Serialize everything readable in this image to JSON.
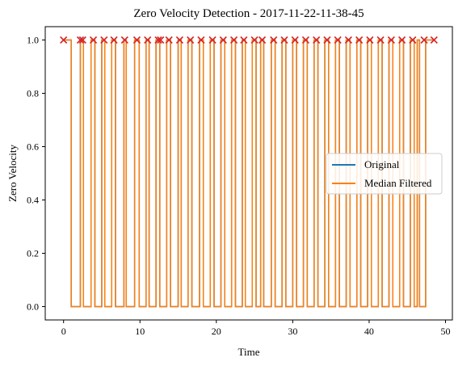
{
  "chart_data": {
    "type": "line",
    "title": "Zero Velocity Detection - 2017-11-22-11-38-45",
    "xlabel": "Time",
    "ylabel": "Zero Velocity",
    "xlim": [
      -2.4,
      50.9
    ],
    "ylim": [
      -0.05,
      1.05
    ],
    "xticks": [
      0,
      10,
      20,
      30,
      40,
      50
    ],
    "yticks": [
      0.0,
      0.2,
      0.4,
      0.6,
      0.8,
      1.0
    ],
    "grid": false,
    "legend": "center-right",
    "t_end": 48.5,
    "series": [
      {
        "name": "Original",
        "color": "#1f77b4",
        "note_zero_intervals": "same as filtered plus brief spike",
        "zero_intervals": [
          [
            1.0,
            2.2
          ],
          [
            2.6,
            3.6
          ],
          [
            4.1,
            5.0
          ],
          [
            5.4,
            6.3
          ],
          [
            6.8,
            7.9
          ],
          [
            8.2,
            9.3
          ],
          [
            9.9,
            10.8
          ],
          [
            11.2,
            12.1
          ],
          [
            12.6,
            13.5
          ],
          [
            14.0,
            15.0
          ],
          [
            15.4,
            16.3
          ],
          [
            16.8,
            17.8
          ],
          [
            18.3,
            19.2
          ],
          [
            19.7,
            20.6
          ],
          [
            21.1,
            22.0
          ],
          [
            22.5,
            23.4
          ],
          [
            23.8,
            24.7
          ],
          [
            25.2,
            25.8
          ],
          [
            26.2,
            27.2
          ],
          [
            27.7,
            28.6
          ],
          [
            29.1,
            30.0
          ],
          [
            30.5,
            31.4
          ],
          [
            31.9,
            32.8
          ],
          [
            33.3,
            34.2
          ],
          [
            34.7,
            35.6
          ],
          [
            36.1,
            37.0
          ],
          [
            37.5,
            38.4
          ],
          [
            38.9,
            39.8
          ],
          [
            40.3,
            41.2
          ],
          [
            41.7,
            42.6
          ],
          [
            43.1,
            44.0
          ],
          [
            44.5,
            45.4
          ],
          [
            45.9,
            46.3
          ],
          [
            46.6,
            47.4
          ]
        ]
      },
      {
        "name": "Median Filtered",
        "color": "#ff7f0e",
        "zero_intervals": [
          [
            1.0,
            2.2
          ],
          [
            2.6,
            3.6
          ],
          [
            4.1,
            5.0
          ],
          [
            5.4,
            6.3
          ],
          [
            6.8,
            7.9
          ],
          [
            8.2,
            9.3
          ],
          [
            9.9,
            10.8
          ],
          [
            11.2,
            12.1
          ],
          [
            12.6,
            13.5
          ],
          [
            14.0,
            15.0
          ],
          [
            15.4,
            16.3
          ],
          [
            16.8,
            17.8
          ],
          [
            18.3,
            19.2
          ],
          [
            19.7,
            20.6
          ],
          [
            21.1,
            22.0
          ],
          [
            22.5,
            23.4
          ],
          [
            23.8,
            24.7
          ],
          [
            25.2,
            25.8
          ],
          [
            26.2,
            27.2
          ],
          [
            27.7,
            28.6
          ],
          [
            29.1,
            30.0
          ],
          [
            30.5,
            31.4
          ],
          [
            31.9,
            32.8
          ],
          [
            33.3,
            34.2
          ],
          [
            34.7,
            35.6
          ],
          [
            36.1,
            37.0
          ],
          [
            37.5,
            38.4
          ],
          [
            38.9,
            39.8
          ],
          [
            40.3,
            41.2
          ],
          [
            41.7,
            42.6
          ],
          [
            43.1,
            44.0
          ],
          [
            44.5,
            45.4
          ],
          [
            45.9,
            46.3
          ],
          [
            46.6,
            47.4
          ]
        ]
      }
    ],
    "markers": {
      "symbol": "x",
      "color": "#d62728",
      "y": 1.0,
      "x": [
        0.0,
        2.2,
        2.5,
        3.9,
        5.3,
        6.6,
        8.0,
        9.6,
        11.0,
        12.4,
        12.7,
        13.8,
        15.2,
        16.6,
        18.0,
        19.5,
        20.9,
        22.3,
        23.6,
        25.0,
        26.0,
        27.5,
        28.9,
        30.3,
        31.7,
        33.1,
        34.5,
        35.9,
        37.3,
        38.7,
        40.1,
        41.5,
        42.9,
        44.3,
        45.7,
        47.2,
        48.5
      ]
    }
  }
}
